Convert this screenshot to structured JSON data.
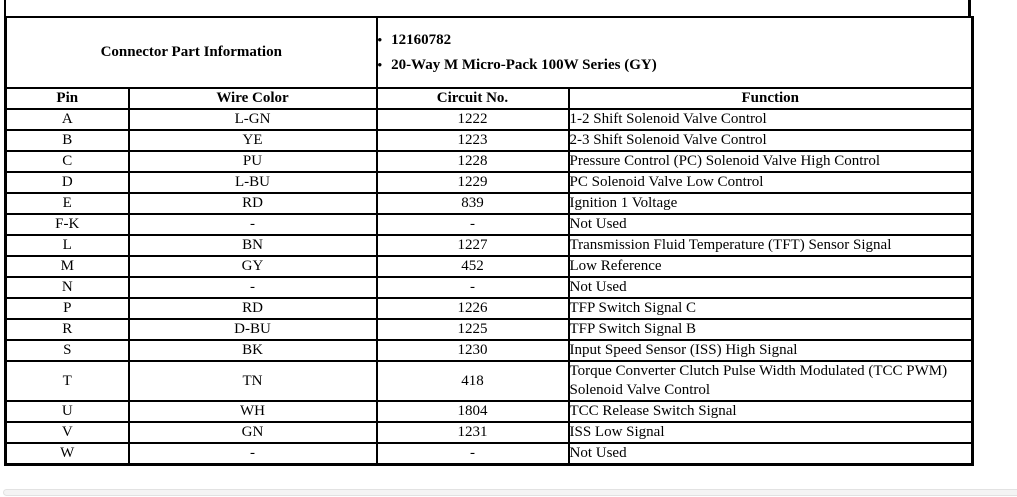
{
  "connector_table": {
    "part_info_label": "Connector Part Information",
    "part_details": [
      "12160782",
      "20-Way M Micro-Pack 100W Series (GY)"
    ],
    "bullet_glyph": "•",
    "columns": [
      "Pin",
      "Wire Color",
      "Circuit No.",
      "Function"
    ],
    "rows": [
      [
        "A",
        "L-GN",
        "1222",
        "1-2 Shift Solenoid Valve Control"
      ],
      [
        "B",
        "YE",
        "1223",
        "2-3 Shift Solenoid Valve Control"
      ],
      [
        "C",
        "PU",
        "1228",
        "Pressure Control (PC) Solenoid Valve High Control"
      ],
      [
        "D",
        "L-BU",
        "1229",
        "PC Solenoid Valve Low Control"
      ],
      [
        "E",
        "RD",
        "839",
        "Ignition 1 Voltage"
      ],
      [
        "F-K",
        "-",
        "-",
        "Not Used"
      ],
      [
        "L",
        "BN",
        "1227",
        "Transmission Fluid Temperature (TFT) Sensor Signal"
      ],
      [
        "M",
        "GY",
        "452",
        "Low Reference"
      ],
      [
        "N",
        "-",
        "-",
        "Not Used"
      ],
      [
        "P",
        "RD",
        "1226",
        "TFP Switch Signal C"
      ],
      [
        "R",
        "D-BU",
        "1225",
        "TFP Switch Signal B"
      ],
      [
        "S",
        "BK",
        "1230",
        "Input Speed Sensor (ISS) High Signal"
      ],
      [
        "T",
        "TN",
        "418",
        "Torque Converter Clutch Pulse Width Modulated (TCC PWM) Solenoid Valve Control"
      ],
      [
        "U",
        "WH",
        "1804",
        "TCC Release Switch Signal"
      ],
      [
        "V",
        "GN",
        "1231",
        "ISS Low Signal"
      ],
      [
        "W",
        "-",
        "-",
        "Not Used"
      ]
    ]
  },
  "colors": {
    "table_border": "#000000",
    "text": "#000000",
    "background": "#ffffff",
    "scrollbar_fill": "#f4f4f4",
    "scrollbar_border": "#e2e2e2"
  }
}
